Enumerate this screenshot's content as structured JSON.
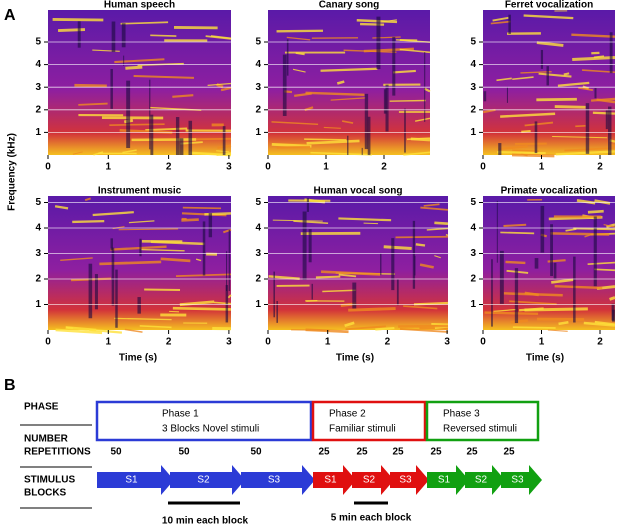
{
  "panel_a": {
    "label": "A",
    "y_axis_label": "Frequency (kHz)",
    "x_axis_label": "Time (s)",
    "panels": [
      {
        "title": "Human speech",
        "xticks": [
          0,
          1,
          2,
          3
        ],
        "yticks": [
          1,
          2,
          3,
          4,
          5
        ]
      },
      {
        "title": "Canary song",
        "xticks": [
          0,
          1,
          2
        ],
        "yticks": [
          1,
          2,
          3,
          4,
          5
        ]
      },
      {
        "title": "Ferret vocalization",
        "xticks": [
          0,
          1,
          2
        ],
        "yticks": [
          1,
          2,
          3,
          4,
          5
        ]
      },
      {
        "title": "Instrument music",
        "xticks": [
          0,
          1,
          2,
          3
        ],
        "yticks": [
          1,
          2,
          3,
          4,
          5
        ]
      },
      {
        "title": "Human vocal song",
        "xticks": [
          0,
          1,
          2,
          3
        ],
        "yticks": [
          1,
          2,
          3,
          4,
          5
        ]
      },
      {
        "title": "Primate vocalization",
        "xticks": [
          0,
          1,
          2
        ],
        "yticks": [
          1,
          2,
          3,
          4,
          5
        ]
      }
    ]
  },
  "panel_b": {
    "label": "B",
    "row_labels": [
      [
        "PHASE"
      ],
      [
        "NUMBER",
        "REPETITIONS"
      ],
      [
        "STIMULUS",
        "BLOCKS"
      ]
    ],
    "phases": [
      {
        "title": "Phase 1",
        "description": "3 Blocks Novel stimuli",
        "color": "#2b3bd6"
      },
      {
        "title": "Phase 2",
        "description": "Familiar stimuli",
        "color": "#e01010"
      },
      {
        "title": "Phase 3",
        "description": "Reversed stimuli",
        "color": "#11a011"
      }
    ],
    "repetitions": [
      50,
      50,
      50,
      25,
      25,
      25,
      25,
      25,
      25
    ],
    "blocks": [
      "S1",
      "S2",
      "S3",
      "S1",
      "S2",
      "S3",
      "S1",
      "S2",
      "S3"
    ],
    "scale_bars": [
      "10 min each block",
      "5 min each block"
    ]
  }
}
